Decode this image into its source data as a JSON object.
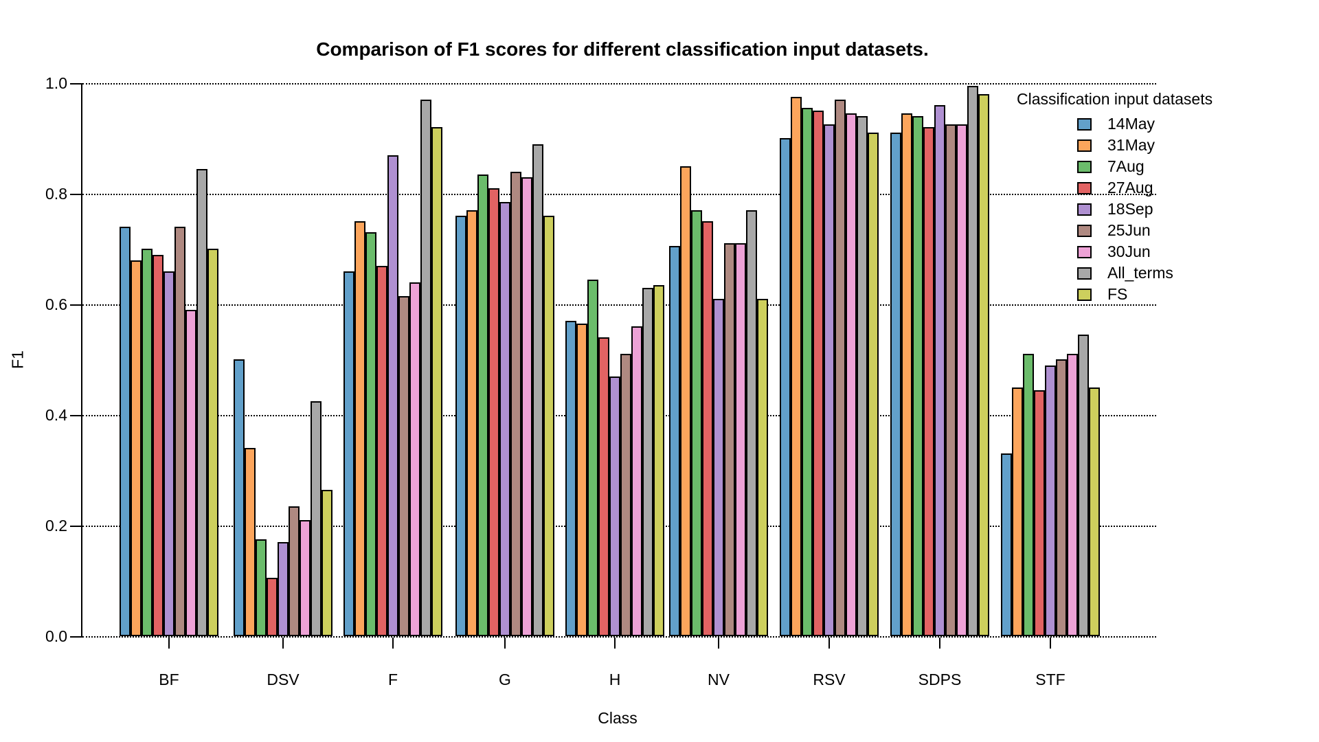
{
  "title": "Comparison of F1 scores for different classification input datasets.",
  "chart_data": {
    "type": "bar",
    "title": "Comparison of F1 scores for different classification input datasets.",
    "xlabel": "Class",
    "ylabel": "F1",
    "ylim": [
      0.0,
      1.0
    ],
    "yticks": [
      0.0,
      0.2,
      0.4,
      0.6,
      0.8,
      1.0
    ],
    "ytick_labels": [
      "0.0",
      "0.2",
      "0.4",
      "0.6",
      "0.8",
      "1.0"
    ],
    "grid": "horizontal dotted lines at every 0.2",
    "legend_title": "Classification input datasets",
    "legend_position": "right",
    "bar_border_color": "#000000",
    "categories": [
      "BF",
      "DSV",
      "F",
      "G",
      "H",
      "NV",
      "RSV",
      "SDPS",
      "STF"
    ],
    "series": [
      {
        "name": "14May",
        "color": "#62A0CA",
        "values": [
          0.74,
          0.5,
          0.66,
          0.76,
          0.57,
          0.705,
          0.9,
          0.91,
          0.33
        ]
      },
      {
        "name": "31May",
        "color": "#FCA55C",
        "values": [
          0.68,
          0.34,
          0.75,
          0.77,
          0.565,
          0.85,
          0.975,
          0.945,
          0.45
        ]
      },
      {
        "name": "7Aug",
        "color": "#6BBC6B",
        "values": [
          0.7,
          0.175,
          0.73,
          0.835,
          0.645,
          0.77,
          0.955,
          0.94,
          0.51
        ]
      },
      {
        "name": "27Aug",
        "color": "#E26363",
        "values": [
          0.69,
          0.105,
          0.67,
          0.81,
          0.54,
          0.75,
          0.95,
          0.92,
          0.445
        ]
      },
      {
        "name": "18Sep",
        "color": "#AF90D1",
        "values": [
          0.66,
          0.17,
          0.87,
          0.785,
          0.47,
          0.61,
          0.925,
          0.96,
          0.49
        ]
      },
      {
        "name": "25Jun",
        "color": "#AF8981",
        "values": [
          0.74,
          0.235,
          0.615,
          0.84,
          0.51,
          0.71,
          0.97,
          0.925,
          0.5
        ]
      },
      {
        "name": "30Jun",
        "color": "#EDA2D6",
        "values": [
          0.59,
          0.21,
          0.64,
          0.83,
          0.56,
          0.71,
          0.945,
          0.925,
          0.51
        ]
      },
      {
        "name": "All_terms",
        "color": "#A8A8A8",
        "values": [
          0.845,
          0.425,
          0.97,
          0.89,
          0.63,
          0.77,
          0.94,
          0.995,
          0.545
        ]
      },
      {
        "name": "FS",
        "color": "#CDCF5D",
        "values": [
          0.7,
          0.265,
          0.92,
          0.76,
          0.635,
          0.61,
          0.91,
          0.98,
          0.45
        ]
      }
    ]
  }
}
